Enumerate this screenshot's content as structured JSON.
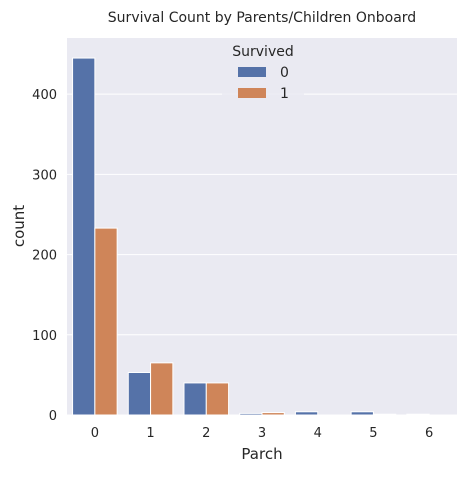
{
  "chart_data": {
    "type": "bar",
    "title": "Survival Count by Parents/Children Onboard",
    "xlabel": "Parch",
    "ylabel": "count",
    "categories": [
      "0",
      "1",
      "2",
      "3",
      "4",
      "5",
      "6"
    ],
    "series": [
      {
        "name": "0",
        "values": [
          445,
          53,
          40,
          2,
          4,
          4,
          1
        ]
      },
      {
        "name": "1",
        "values": [
          233,
          65,
          40,
          3,
          0,
          1,
          0
        ]
      }
    ],
    "ylim": [
      0,
      470
    ],
    "yticks": [
      0,
      100,
      200,
      300,
      400
    ],
    "grid": true,
    "legend": {
      "title": "Survived",
      "placement": "top-center"
    },
    "colors": {
      "series_0": "#5572a8",
      "series_1": "#cf8559",
      "background": "#eaeaf2",
      "grid": "#ffffff"
    }
  }
}
